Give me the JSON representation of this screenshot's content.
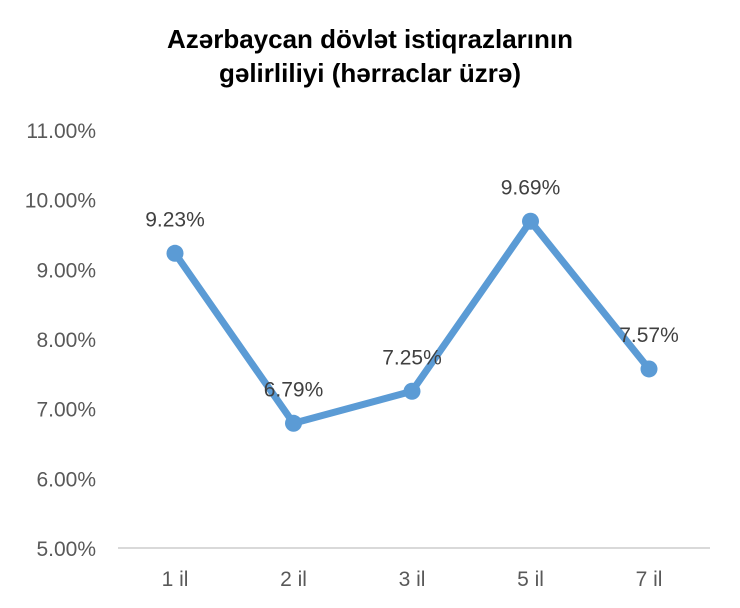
{
  "chart_data": {
    "type": "line",
    "title_lines": [
      "Azərbaycan dövlət istiqrazlarının",
      "gəlirliliyi (hərraclar üzrə)"
    ],
    "categories": [
      "1 il",
      "2 il",
      "3 il",
      "5 il",
      "7 il"
    ],
    "values": [
      9.23,
      6.79,
      7.25,
      9.69,
      7.57
    ],
    "data_labels": [
      "9.23%",
      "6.79%",
      "7.25%",
      "9.69%",
      "7.57%"
    ],
    "ylim": [
      5,
      11
    ],
    "yticks": [
      5,
      6,
      7,
      8,
      9,
      10,
      11
    ],
    "ytick_labels": [
      "5.00%",
      "6.00%",
      "7.00%",
      "8.00%",
      "9.00%",
      "10.00%",
      "11.00%"
    ],
    "grid": false,
    "legend": "none",
    "colors": {
      "line": "#5b9bd5",
      "axis": "#d9d9d9"
    }
  }
}
